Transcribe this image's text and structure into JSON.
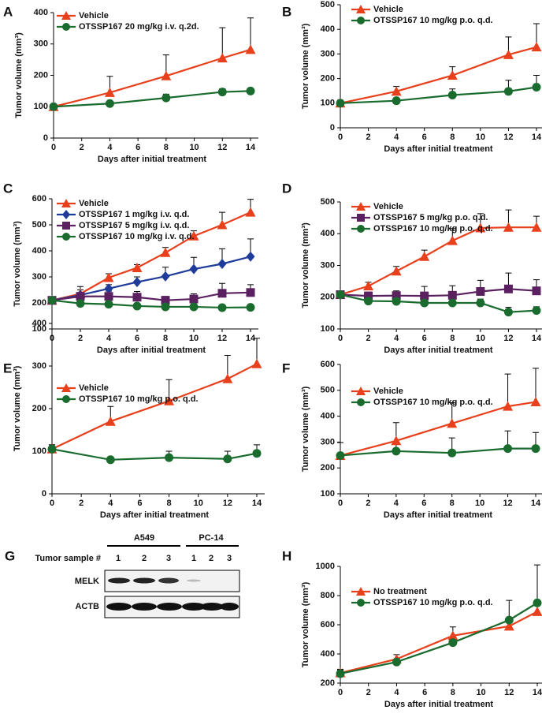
{
  "chart_data": [
    {
      "type": "line",
      "panel": "A",
      "ylabel": "Tumor volume (mm³)",
      "xlabel": "Days after initial treatment",
      "x": [
        0,
        4,
        8,
        12,
        14
      ],
      "xlim": [
        0,
        14
      ],
      "xticks": [
        0,
        2,
        4,
        6,
        8,
        10,
        12,
        14
      ],
      "ylim": [
        0,
        400
      ],
      "yticks": [
        0,
        100,
        200,
        300,
        400
      ],
      "series": [
        {
          "name": "Vehicle",
          "color": "#e8401c",
          "marker": "triangle",
          "values": [
            100,
            145,
            198,
            255,
            282
          ],
          "errors": [
            5,
            52,
            67,
            97,
            101
          ]
        },
        {
          "name": "OTSSP167  20 mg/kg i.v. q.2d.",
          "color": "#1a6b2e",
          "marker": "circle",
          "values": [
            100,
            110,
            128,
            147,
            150
          ],
          "errors": [
            5,
            5,
            12,
            10,
            8
          ]
        }
      ]
    },
    {
      "type": "line",
      "panel": "B",
      "ylabel": "Tumor volume (mm³)",
      "xlabel": "Days after initial treatment",
      "x": [
        0,
        4,
        8,
        12,
        14
      ],
      "xlim": [
        0,
        14
      ],
      "xticks": [
        0,
        2,
        4,
        6,
        8,
        10,
        12,
        14
      ],
      "ylim": [
        0,
        500
      ],
      "yticks": [
        0,
        100,
        200,
        300,
        400,
        500
      ],
      "series": [
        {
          "name": "Vehicle",
          "color": "#e8401c",
          "marker": "triangle",
          "values": [
            100,
            148,
            213,
            297,
            328
          ],
          "errors": [
            12,
            20,
            35,
            72,
            95
          ]
        },
        {
          "name": "OTSSP167  10 mg/kg p.o. q.d.",
          "color": "#1a6b2e",
          "marker": "circle",
          "values": [
            100,
            110,
            133,
            148,
            165
          ],
          "errors": [
            5,
            8,
            25,
            45,
            48
          ]
        }
      ]
    },
    {
      "type": "line",
      "panel": "C",
      "ylabel": "Tumor volume (mm³)",
      "xlabel": "Days after initial treatment",
      "x": [
        0,
        2,
        4,
        6,
        8,
        10,
        12,
        14
      ],
      "xlim": [
        0,
        14
      ],
      "xticks": [
        0,
        2,
        4,
        6,
        8,
        10,
        12,
        14
      ],
      "ylim": [
        100,
        600
      ],
      "yticks": [
        100,
        200,
        300,
        400,
        500,
        600
      ],
      "series": [
        {
          "name": "Vehicle",
          "color": "#e8401c",
          "marker": "triangle",
          "values": [
            210,
            235,
            297,
            335,
            393,
            457,
            500,
            548
          ],
          "errors": [
            5,
            28,
            15,
            12,
            20,
            20,
            48,
            50
          ]
        },
        {
          "name": "OTSSP167   1 mg/kg i.v. q.d.",
          "color": "#1f3c9a",
          "marker": "diamond",
          "values": [
            210,
            230,
            255,
            280,
            302,
            330,
            350,
            378
          ],
          "errors": [
            5,
            20,
            15,
            20,
            35,
            45,
            58,
            68
          ]
        },
        {
          "name": "OTSSP167   5 mg/kg i.v. q.d.",
          "color": "#5a2060",
          "marker": "square",
          "values": [
            210,
            225,
            225,
            222,
            210,
            215,
            237,
            240
          ],
          "errors": [
            5,
            15,
            20,
            22,
            15,
            20,
            38,
            30
          ]
        },
        {
          "name": "OTSSP167 10 mg/kg i.v. q.d.",
          "color": "#1a6b2e",
          "marker": "circle",
          "values": [
            210,
            198,
            195,
            188,
            185,
            185,
            182,
            183
          ],
          "errors": [
            5,
            10,
            8,
            8,
            10,
            10,
            8,
            8
          ]
        }
      ]
    },
    {
      "type": "line",
      "panel": "D",
      "ylabel": "Tumor volume (mm³)",
      "xlabel": "Days after initial treatment",
      "x": [
        0,
        2,
        4,
        6,
        8,
        10,
        12,
        14
      ],
      "xlim": [
        0,
        14
      ],
      "xticks": [
        0,
        2,
        4,
        6,
        8,
        10,
        12,
        14
      ],
      "ylim": [
        100,
        500
      ],
      "yticks": [
        100,
        200,
        300,
        400,
        500
      ],
      "series": [
        {
          "name": "Vehicle",
          "color": "#e8401c",
          "marker": "triangle",
          "values": [
            208,
            235,
            282,
            328,
            378,
            418,
            420,
            420
          ],
          "errors": [
            5,
            12,
            15,
            20,
            38,
            45,
            55,
            35
          ]
        },
        {
          "name": "OTSSP167    5 mg/kg  p.o. q.d.",
          "color": "#5a2060",
          "marker": "square",
          "values": [
            208,
            204,
            205,
            204,
            206,
            218,
            226,
            220
          ],
          "errors": [
            5,
            12,
            15,
            30,
            30,
            35,
            50,
            35
          ]
        },
        {
          "name": "OTSSP167  10 mg/kg  p.o. q.d.",
          "color": "#1a6b2e",
          "marker": "circle",
          "values": [
            208,
            188,
            187,
            182,
            182,
            182,
            153,
            158
          ],
          "errors": [
            5,
            10,
            12,
            12,
            12,
            12,
            15,
            12
          ]
        }
      ]
    },
    {
      "type": "line",
      "panel": "E",
      "ylabel": "Tumor volume (mm³)",
      "xlabel": "Days after initial treatment",
      "x": [
        0,
        4,
        8,
        12,
        14
      ],
      "xlim": [
        0,
        14
      ],
      "xticks": [
        0,
        2,
        4,
        6,
        8,
        10,
        12,
        14
      ],
      "ylim": [
        0,
        400
      ],
      "yticks": [
        0,
        100,
        200,
        300,
        400
      ],
      "series": [
        {
          "name": "Vehicle",
          "color": "#e8401c",
          "marker": "triangle",
          "values": [
            105,
            170,
            218,
            270,
            305
          ],
          "errors": [
            10,
            35,
            50,
            55,
            60
          ]
        },
        {
          "name": "OTSSP167  10 mg/kg p.o. q.d.",
          "color": "#1a6b2e",
          "marker": "circle",
          "values": [
            105,
            80,
            85,
            82,
            95
          ],
          "errors": [
            10,
            5,
            15,
            18,
            20
          ]
        }
      ]
    },
    {
      "type": "line",
      "panel": "F",
      "ylabel": "Tumor volume (mm³)",
      "xlabel": "Days after initial treatment",
      "x": [
        0,
        4,
        8,
        12,
        14
      ],
      "xlim": [
        0,
        14
      ],
      "xticks": [
        0,
        2,
        4,
        6,
        8,
        10,
        12,
        14
      ],
      "ylim": [
        100,
        600
      ],
      "yticks": [
        100,
        200,
        300,
        400,
        500,
        600
      ],
      "series": [
        {
          "name": "Vehicle",
          "color": "#e8401c",
          "marker": "triangle",
          "values": [
            248,
            305,
            372,
            438,
            455
          ],
          "errors": [
            50,
            70,
            80,
            125,
            130
          ]
        },
        {
          "name": "OTSSP167  10 mg/kg p.o. q.d.",
          "color": "#1a6b2e",
          "marker": "circle",
          "values": [
            248,
            265,
            258,
            275,
            275
          ],
          "errors": [
            5,
            30,
            58,
            68,
            62
          ]
        }
      ]
    },
    {
      "type": "line",
      "panel": "H",
      "ylabel": "Tumor volume (mm³)",
      "xlabel": "Days after initial treatment",
      "x": [
        0,
        4,
        8,
        12,
        14
      ],
      "xlim": [
        0,
        14
      ],
      "xticks": [
        0,
        2,
        4,
        6,
        8,
        10,
        12,
        14
      ],
      "ylim": [
        200,
        1000
      ],
      "yticks": [
        200,
        400,
        600,
        800,
        1000
      ],
      "series": [
        {
          "name": "No treatment",
          "color": "#e8401c",
          "marker": "triangle",
          "values": [
            270,
            365,
            525,
            590,
            690
          ],
          "errors": [
            20,
            30,
            60,
            50,
            40
          ]
        },
        {
          "name": "OTSSP167  10 mg/kg p.o. q.d.",
          "color": "#1a6b2e",
          "marker": "circle",
          "values": [
            265,
            345,
            478,
            632,
            750
          ],
          "errors": [
            30,
            20,
            20,
            135,
            260
          ]
        }
      ]
    }
  ],
  "blot": {
    "panel": "G",
    "groups": [
      "A549",
      "PC-14"
    ],
    "sample_label": "Tumor sample #",
    "samples": [
      "1",
      "2",
      "3",
      "1",
      "2",
      "3"
    ],
    "rows": [
      "MELK",
      "ACTB"
    ]
  }
}
